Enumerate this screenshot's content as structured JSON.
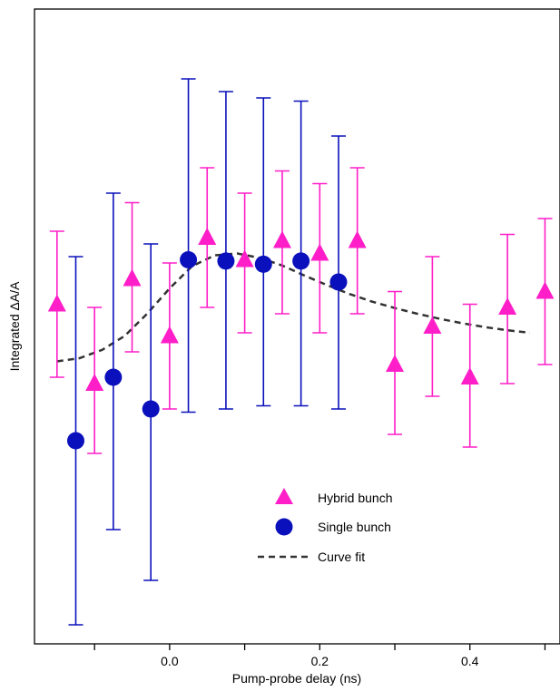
{
  "chart_data": {
    "type": "scatter",
    "xlabel": "Pump-probe delay (ns)",
    "ylabel": "Integrated ΔA/A",
    "xlim": [
      -0.18,
      0.52
    ],
    "ylim": [
      0,
      1
    ],
    "x_ticks": [
      -0.1,
      0.0,
      0.1,
      0.2,
      0.3,
      0.4,
      0.5
    ],
    "x_tick_labels": [
      "",
      "0.0",
      "",
      "0.2",
      "",
      "0.4",
      ""
    ],
    "y_ticks_shown": false,
    "grid": false,
    "legend_position": "bottom-center",
    "series": [
      {
        "name": "Hybrid bunch",
        "marker": "triangle",
        "color": "#ff1ec8",
        "points": [
          {
            "x": -0.15,
            "y": 0.535,
            "lo": 0.42,
            "hi": 0.65
          },
          {
            "x": -0.1,
            "y": 0.41,
            "lo": 0.3,
            "hi": 0.53
          },
          {
            "x": -0.05,
            "y": 0.575,
            "lo": 0.46,
            "hi": 0.695
          },
          {
            "x": 0.0,
            "y": 0.485,
            "lo": 0.37,
            "hi": 0.6
          },
          {
            "x": 0.05,
            "y": 0.64,
            "lo": 0.53,
            "hi": 0.75
          },
          {
            "x": 0.1,
            "y": 0.605,
            "lo": 0.49,
            "hi": 0.71
          },
          {
            "x": 0.15,
            "y": 0.635,
            "lo": 0.52,
            "hi": 0.745
          },
          {
            "x": 0.2,
            "y": 0.615,
            "lo": 0.49,
            "hi": 0.725
          },
          {
            "x": 0.25,
            "y": 0.635,
            "lo": 0.52,
            "hi": 0.75
          },
          {
            "x": 0.3,
            "y": 0.44,
            "lo": 0.33,
            "hi": 0.555
          },
          {
            "x": 0.35,
            "y": 0.5,
            "lo": 0.39,
            "hi": 0.61
          },
          {
            "x": 0.4,
            "y": 0.42,
            "lo": 0.31,
            "hi": 0.535
          },
          {
            "x": 0.45,
            "y": 0.53,
            "lo": 0.41,
            "hi": 0.645
          },
          {
            "x": 0.5,
            "y": 0.555,
            "lo": 0.44,
            "hi": 0.67
          }
        ]
      },
      {
        "name": "Single bunch",
        "marker": "circle",
        "color": "#0a10bb",
        "points": [
          {
            "x": -0.125,
            "y": 0.32,
            "lo": 0.03,
            "hi": 0.61
          },
          {
            "x": -0.075,
            "y": 0.42,
            "lo": 0.18,
            "hi": 0.71
          },
          {
            "x": -0.025,
            "y": 0.37,
            "lo": 0.1,
            "hi": 0.63
          },
          {
            "x": 0.025,
            "y": 0.605,
            "lo": 0.365,
            "hi": 0.89
          },
          {
            "x": 0.075,
            "y": 0.603,
            "lo": 0.37,
            "hi": 0.87
          },
          {
            "x": 0.125,
            "y": 0.598,
            "lo": 0.375,
            "hi": 0.86
          },
          {
            "x": 0.175,
            "y": 0.603,
            "lo": 0.375,
            "hi": 0.855
          },
          {
            "x": 0.225,
            "y": 0.57,
            "lo": 0.37,
            "hi": 0.8
          }
        ]
      },
      {
        "name": "Curve fit",
        "line_style": "dashed",
        "color": "#333333",
        "points": [
          {
            "x": -0.15,
            "y": 0.445
          },
          {
            "x": -0.12,
            "y": 0.45
          },
          {
            "x": -0.09,
            "y": 0.463
          },
          {
            "x": -0.06,
            "y": 0.485
          },
          {
            "x": -0.03,
            "y": 0.52
          },
          {
            "x": 0.0,
            "y": 0.56
          },
          {
            "x": 0.03,
            "y": 0.595
          },
          {
            "x": 0.06,
            "y": 0.612
          },
          {
            "x": 0.09,
            "y": 0.615
          },
          {
            "x": 0.12,
            "y": 0.608
          },
          {
            "x": 0.15,
            "y": 0.596
          },
          {
            "x": 0.18,
            "y": 0.58
          },
          {
            "x": 0.21,
            "y": 0.565
          },
          {
            "x": 0.24,
            "y": 0.551
          },
          {
            "x": 0.27,
            "y": 0.539
          },
          {
            "x": 0.3,
            "y": 0.529
          },
          {
            "x": 0.33,
            "y": 0.52
          },
          {
            "x": 0.36,
            "y": 0.512
          },
          {
            "x": 0.39,
            "y": 0.505
          },
          {
            "x": 0.42,
            "y": 0.499
          },
          {
            "x": 0.45,
            "y": 0.494
          },
          {
            "x": 0.48,
            "y": 0.49
          }
        ]
      }
    ]
  }
}
